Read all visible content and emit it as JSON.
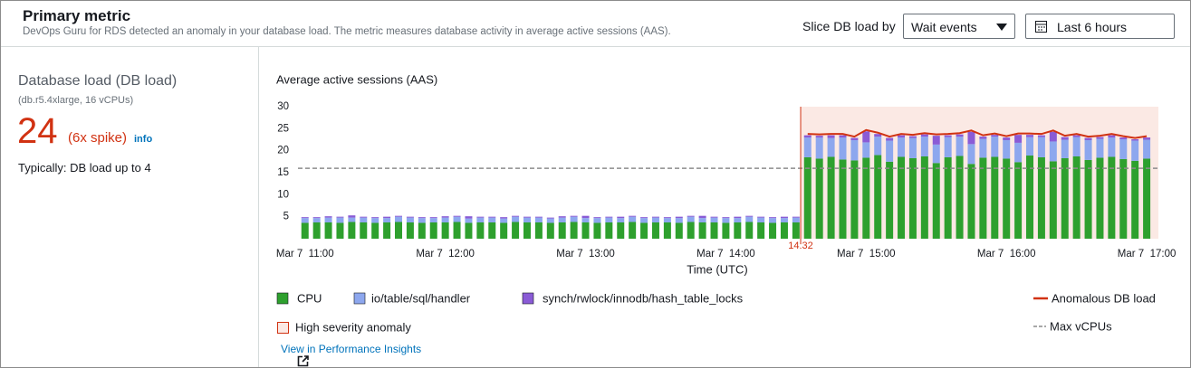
{
  "header": {
    "title": "Primary metric",
    "description": "DevOps Guru for RDS detected an anomaly in your database load. The metric measures database activity in average active sessions (AAS).",
    "slice_label": "Slice DB load by",
    "slice_value": "Wait events",
    "time_range": "Last 6 hours"
  },
  "summary": {
    "title": "Database load (DB load)",
    "instance": "(db.r5.4xlarge, 16 vCPUs)",
    "value": "24",
    "spike": "(6x spike)",
    "info": "info",
    "typical": "Typically: DB load up to 4"
  },
  "link": "View in Performance Insights",
  "chart_data": {
    "type": "bar",
    "stacked": true,
    "title": "Average active sessions (AAS)",
    "x_label": "Time (UTC)",
    "x": [
      660,
      665,
      670,
      675,
      680,
      685,
      690,
      695,
      700,
      705,
      710,
      715,
      720,
      725,
      730,
      735,
      740,
      745,
      750,
      755,
      760,
      765,
      770,
      775,
      780,
      785,
      790,
      795,
      800,
      805,
      810,
      815,
      820,
      825,
      830,
      835,
      840,
      845,
      850,
      855,
      860,
      865,
      870,
      875,
      880,
      885,
      890,
      895,
      900,
      905,
      910,
      915,
      920,
      925,
      930,
      935,
      940,
      945,
      950,
      955,
      960,
      965,
      970,
      975,
      980,
      985,
      990,
      995,
      1000,
      1005,
      1010,
      1015,
      1020
    ],
    "series": [
      {
        "name": "CPU",
        "color": "#2ea02e",
        "values": [
          3.6,
          3.7,
          3.7,
          3.6,
          3.8,
          3.7,
          3.6,
          3.7,
          3.8,
          3.7,
          3.6,
          3.7,
          3.7,
          3.8,
          3.6,
          3.7,
          3.7,
          3.6,
          3.8,
          3.7,
          3.7,
          3.6,
          3.7,
          3.8,
          3.7,
          3.6,
          3.7,
          3.7,
          3.8,
          3.6,
          3.7,
          3.7,
          3.6,
          3.8,
          3.7,
          3.7,
          3.6,
          3.7,
          3.8,
          3.7,
          3.6,
          3.7,
          3.7,
          18.5,
          18.2,
          18.6,
          18.0,
          17.8,
          18.4,
          19.0,
          17.5,
          18.6,
          18.3,
          18.7,
          17.2,
          18.5,
          18.8,
          17.0,
          18.4,
          18.6,
          18.2,
          17.4,
          18.9,
          18.5,
          17.6,
          18.3,
          18.7,
          17.9,
          18.4,
          18.6,
          18.1,
          17.7,
          18.2
        ]
      },
      {
        "name": "io/table/sql/handler",
        "color": "#8da7ee",
        "values": [
          1.1,
          1.0,
          1.1,
          1.2,
          1.0,
          1.1,
          1.1,
          1.0,
          1.2,
          1.1,
          1.1,
          1.0,
          1.1,
          1.2,
          1.0,
          1.1,
          1.1,
          1.0,
          1.2,
          1.1,
          1.1,
          1.0,
          1.1,
          1.2,
          1.0,
          1.1,
          1.1,
          1.0,
          1.2,
          1.1,
          1.1,
          1.0,
          1.1,
          1.2,
          1.0,
          1.1,
          1.1,
          1.0,
          1.2,
          1.1,
          1.1,
          1.0,
          1.1,
          4.5,
          4.8,
          4.3,
          5.0,
          4.6,
          3.5,
          4.2,
          4.8,
          4.4,
          4.6,
          4.5,
          4.2,
          4.6,
          4.4,
          4.5,
          4.3,
          4.6,
          4.2,
          4.4,
          4.2,
          4.6,
          4.5,
          4.2,
          4.4,
          4.5,
          4.3,
          4.4,
          4.5,
          4.6,
          4.3
        ]
      },
      {
        "name": "synch/rwlock/innodb/hash_table_locks",
        "color": "#8a5bd6",
        "values": [
          0.2,
          0.2,
          0.3,
          0.2,
          0.5,
          0.2,
          0.2,
          0.3,
          0.2,
          0.2,
          0.2,
          0.2,
          0.3,
          0.2,
          0.5,
          0.2,
          0.2,
          0.3,
          0.2,
          0.2,
          0.2,
          0.2,
          0.3,
          0.2,
          0.5,
          0.2,
          0.2,
          0.3,
          0.2,
          0.2,
          0.2,
          0.2,
          0.3,
          0.2,
          0.5,
          0.2,
          0.2,
          0.3,
          0.2,
          0.2,
          0.2,
          0.3,
          0.2,
          0.5,
          0.4,
          0.6,
          0.5,
          0.5,
          2.5,
          0.6,
          0.6,
          0.5,
          0.4,
          0.5,
          2.0,
          0.4,
          0.5,
          2.8,
          0.5,
          0.4,
          0.6,
          1.8,
          0.5,
          0.4,
          2.2,
          0.6,
          0.4,
          0.5,
          0.4,
          0.5,
          0.4,
          0.3,
          0.5
        ]
      },
      {
        "name": "Anomalous DB load",
        "type": "line",
        "color": "#d13212",
        "values": [
          null,
          null,
          null,
          null,
          null,
          null,
          null,
          null,
          null,
          null,
          null,
          null,
          null,
          null,
          null,
          null,
          null,
          null,
          null,
          null,
          null,
          null,
          null,
          null,
          null,
          null,
          null,
          null,
          null,
          null,
          null,
          null,
          null,
          null,
          null,
          null,
          null,
          null,
          null,
          null,
          null,
          null,
          null,
          23.8,
          23.7,
          23.8,
          23.8,
          23.2,
          24.7,
          24.1,
          23.2,
          23.8,
          23.6,
          24.0,
          23.7,
          23.8,
          24.0,
          24.6,
          23.5,
          23.9,
          23.3,
          23.9,
          23.9,
          23.8,
          24.6,
          23.4,
          23.8,
          23.2,
          23.4,
          23.8,
          23.3,
          22.9,
          23.3
        ]
      }
    ],
    "reference_line": {
      "name": "Max vCPUs",
      "value": 16,
      "color": "#8c8c8c"
    },
    "anomaly": {
      "name": "High severity anomaly",
      "start": {
        "value": 872,
        "label": "14:32"
      },
      "color": "#d13212",
      "fill": "#fbe9e4"
    },
    "xlim": [
      657,
      1025
    ],
    "xticks": [
      {
        "value": 660,
        "label": "Mar 7  11:00"
      },
      {
        "value": 720,
        "label": "Mar 7  12:00"
      },
      {
        "value": 780,
        "label": "Mar 7  13:00"
      },
      {
        "value": 840,
        "label": "Mar 7  14:00"
      },
      {
        "value": 900,
        "label": "Mar 7  15:00"
      },
      {
        "value": 960,
        "label": "Mar 7  16:00"
      },
      {
        "value": 1020,
        "label": "Mar 7  17:00"
      }
    ],
    "ylim": [
      0,
      30
    ],
    "yticks": [
      5,
      10,
      15,
      20,
      25,
      30
    ]
  }
}
